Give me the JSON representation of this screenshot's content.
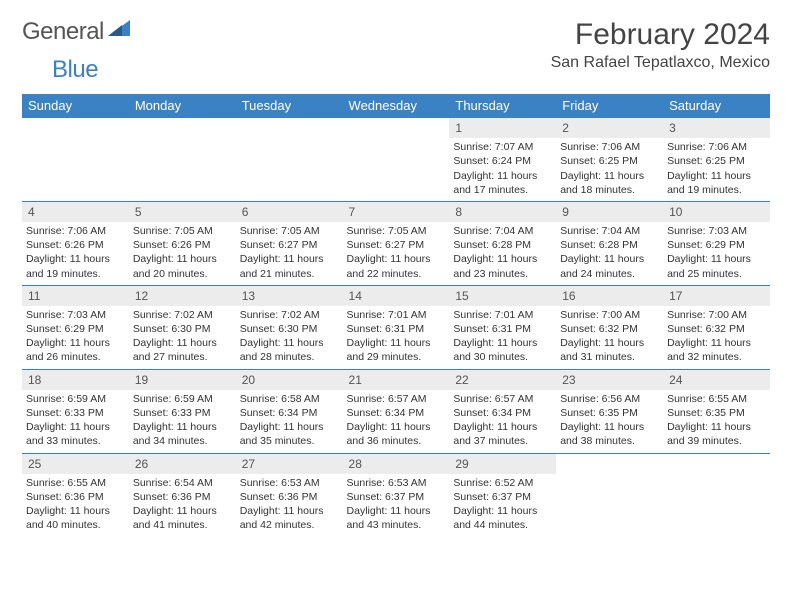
{
  "logo": {
    "text1": "General",
    "text2": "Blue"
  },
  "title": "February 2024",
  "location": "San Rafael Tepatlaxco, Mexico",
  "header_bg": "#3b82c4",
  "header_fg": "#ffffff",
  "rule_color": "#3b82c4",
  "daynum_bg": "#ececec",
  "days_of_week": [
    "Sunday",
    "Monday",
    "Tuesday",
    "Wednesday",
    "Thursday",
    "Friday",
    "Saturday"
  ],
  "weeks": [
    [
      null,
      null,
      null,
      null,
      {
        "n": "1",
        "sr": "Sunrise: 7:07 AM",
        "ss": "Sunset: 6:24 PM",
        "d1": "Daylight: 11 hours",
        "d2": "and 17 minutes."
      },
      {
        "n": "2",
        "sr": "Sunrise: 7:06 AM",
        "ss": "Sunset: 6:25 PM",
        "d1": "Daylight: 11 hours",
        "d2": "and 18 minutes."
      },
      {
        "n": "3",
        "sr": "Sunrise: 7:06 AM",
        "ss": "Sunset: 6:25 PM",
        "d1": "Daylight: 11 hours",
        "d2": "and 19 minutes."
      }
    ],
    [
      {
        "n": "4",
        "sr": "Sunrise: 7:06 AM",
        "ss": "Sunset: 6:26 PM",
        "d1": "Daylight: 11 hours",
        "d2": "and 19 minutes."
      },
      {
        "n": "5",
        "sr": "Sunrise: 7:05 AM",
        "ss": "Sunset: 6:26 PM",
        "d1": "Daylight: 11 hours",
        "d2": "and 20 minutes."
      },
      {
        "n": "6",
        "sr": "Sunrise: 7:05 AM",
        "ss": "Sunset: 6:27 PM",
        "d1": "Daylight: 11 hours",
        "d2": "and 21 minutes."
      },
      {
        "n": "7",
        "sr": "Sunrise: 7:05 AM",
        "ss": "Sunset: 6:27 PM",
        "d1": "Daylight: 11 hours",
        "d2": "and 22 minutes."
      },
      {
        "n": "8",
        "sr": "Sunrise: 7:04 AM",
        "ss": "Sunset: 6:28 PM",
        "d1": "Daylight: 11 hours",
        "d2": "and 23 minutes."
      },
      {
        "n": "9",
        "sr": "Sunrise: 7:04 AM",
        "ss": "Sunset: 6:28 PM",
        "d1": "Daylight: 11 hours",
        "d2": "and 24 minutes."
      },
      {
        "n": "10",
        "sr": "Sunrise: 7:03 AM",
        "ss": "Sunset: 6:29 PM",
        "d1": "Daylight: 11 hours",
        "d2": "and 25 minutes."
      }
    ],
    [
      {
        "n": "11",
        "sr": "Sunrise: 7:03 AM",
        "ss": "Sunset: 6:29 PM",
        "d1": "Daylight: 11 hours",
        "d2": "and 26 minutes."
      },
      {
        "n": "12",
        "sr": "Sunrise: 7:02 AM",
        "ss": "Sunset: 6:30 PM",
        "d1": "Daylight: 11 hours",
        "d2": "and 27 minutes."
      },
      {
        "n": "13",
        "sr": "Sunrise: 7:02 AM",
        "ss": "Sunset: 6:30 PM",
        "d1": "Daylight: 11 hours",
        "d2": "and 28 minutes."
      },
      {
        "n": "14",
        "sr": "Sunrise: 7:01 AM",
        "ss": "Sunset: 6:31 PM",
        "d1": "Daylight: 11 hours",
        "d2": "and 29 minutes."
      },
      {
        "n": "15",
        "sr": "Sunrise: 7:01 AM",
        "ss": "Sunset: 6:31 PM",
        "d1": "Daylight: 11 hours",
        "d2": "and 30 minutes."
      },
      {
        "n": "16",
        "sr": "Sunrise: 7:00 AM",
        "ss": "Sunset: 6:32 PM",
        "d1": "Daylight: 11 hours",
        "d2": "and 31 minutes."
      },
      {
        "n": "17",
        "sr": "Sunrise: 7:00 AM",
        "ss": "Sunset: 6:32 PM",
        "d1": "Daylight: 11 hours",
        "d2": "and 32 minutes."
      }
    ],
    [
      {
        "n": "18",
        "sr": "Sunrise: 6:59 AM",
        "ss": "Sunset: 6:33 PM",
        "d1": "Daylight: 11 hours",
        "d2": "and 33 minutes."
      },
      {
        "n": "19",
        "sr": "Sunrise: 6:59 AM",
        "ss": "Sunset: 6:33 PM",
        "d1": "Daylight: 11 hours",
        "d2": "and 34 minutes."
      },
      {
        "n": "20",
        "sr": "Sunrise: 6:58 AM",
        "ss": "Sunset: 6:34 PM",
        "d1": "Daylight: 11 hours",
        "d2": "and 35 minutes."
      },
      {
        "n": "21",
        "sr": "Sunrise: 6:57 AM",
        "ss": "Sunset: 6:34 PM",
        "d1": "Daylight: 11 hours",
        "d2": "and 36 minutes."
      },
      {
        "n": "22",
        "sr": "Sunrise: 6:57 AM",
        "ss": "Sunset: 6:34 PM",
        "d1": "Daylight: 11 hours",
        "d2": "and 37 minutes."
      },
      {
        "n": "23",
        "sr": "Sunrise: 6:56 AM",
        "ss": "Sunset: 6:35 PM",
        "d1": "Daylight: 11 hours",
        "d2": "and 38 minutes."
      },
      {
        "n": "24",
        "sr": "Sunrise: 6:55 AM",
        "ss": "Sunset: 6:35 PM",
        "d1": "Daylight: 11 hours",
        "d2": "and 39 minutes."
      }
    ],
    [
      {
        "n": "25",
        "sr": "Sunrise: 6:55 AM",
        "ss": "Sunset: 6:36 PM",
        "d1": "Daylight: 11 hours",
        "d2": "and 40 minutes."
      },
      {
        "n": "26",
        "sr": "Sunrise: 6:54 AM",
        "ss": "Sunset: 6:36 PM",
        "d1": "Daylight: 11 hours",
        "d2": "and 41 minutes."
      },
      {
        "n": "27",
        "sr": "Sunrise: 6:53 AM",
        "ss": "Sunset: 6:36 PM",
        "d1": "Daylight: 11 hours",
        "d2": "and 42 minutes."
      },
      {
        "n": "28",
        "sr": "Sunrise: 6:53 AM",
        "ss": "Sunset: 6:37 PM",
        "d1": "Daylight: 11 hours",
        "d2": "and 43 minutes."
      },
      {
        "n": "29",
        "sr": "Sunrise: 6:52 AM",
        "ss": "Sunset: 6:37 PM",
        "d1": "Daylight: 11 hours",
        "d2": "and 44 minutes."
      },
      null,
      null
    ]
  ]
}
